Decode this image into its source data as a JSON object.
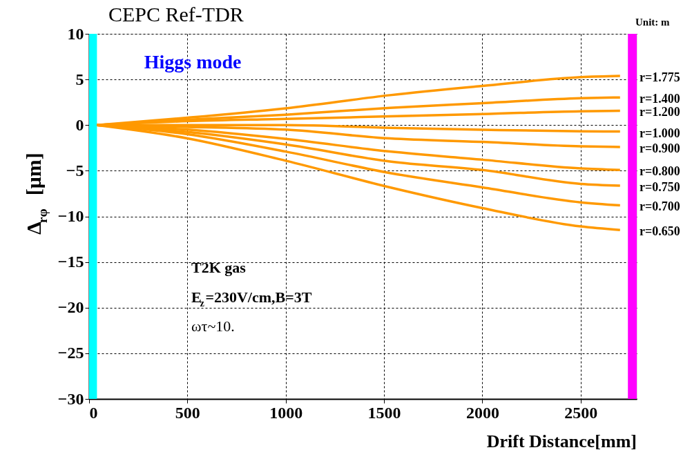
{
  "chart_data": {
    "type": "line",
    "title": "CEPC  Ref-TDR",
    "xlabel": "Drift Distance[mm]",
    "ylabel": "Δ$_{rφ}$  [μm]",
    "xlim": [
      0,
      2785
    ],
    "ylim": [
      -30,
      10
    ],
    "xticks": [
      0,
      500,
      1000,
      1500,
      2000,
      2500
    ],
    "yticks": [
      -30,
      -25,
      -20,
      -15,
      -10,
      -5,
      0,
      5,
      10
    ],
    "grid": true,
    "legend": false,
    "marker": "none",
    "line_style": "solid",
    "x": [
      40,
      500,
      1000,
      1530,
      2000,
      2500,
      2700
    ],
    "series": [
      {
        "name": "r=1.775",
        "color": "#ff9900",
        "values": [
          0,
          0.81,
          1.84,
          3.28,
          4.29,
          5.25,
          5.38
        ]
      },
      {
        "name": "r=1.400",
        "color": "#ff9900",
        "values": [
          0,
          0.58,
          1.14,
          1.89,
          2.4,
          2.95,
          3.03
        ]
      },
      {
        "name": "r=1.200",
        "color": "#ff9900",
        "values": [
          0,
          0.43,
          0.68,
          0.96,
          1.21,
          1.52,
          1.57
        ]
      },
      {
        "name": "r=1.000",
        "color": "#ff9900",
        "values": [
          0,
          0,
          0,
          -0.3,
          -0.51,
          -0.68,
          -0.7
        ]
      },
      {
        "name": "r=0.900",
        "color": "#ff9900",
        "values": [
          0,
          -0.2,
          -0.5,
          -1.46,
          -1.84,
          -2.32,
          -2.4
        ]
      },
      {
        "name": "r=0.800",
        "color": "#ff9900",
        "values": [
          0,
          -0.5,
          -1.52,
          -2.9,
          -3.79,
          -4.75,
          -4.92
        ]
      },
      {
        "name": "r=0.750",
        "color": "#ff9900",
        "values": [
          0,
          -0.76,
          -2.12,
          -3.99,
          -4.92,
          -6.44,
          -6.64
        ]
      },
      {
        "name": "r=0.700",
        "color": "#ff9900",
        "values": [
          0,
          -1.0,
          -2.9,
          -5.25,
          -6.82,
          -8.46,
          -8.79
        ]
      },
      {
        "name": "r=0.650",
        "color": "#ff9900",
        "values": [
          0,
          -1.45,
          -3.9,
          -6.82,
          -9.09,
          -11.1,
          -11.49
        ]
      }
    ],
    "bands": [
      {
        "axis": "x",
        "from": 0,
        "to": 40,
        "color": "#00ffff"
      },
      {
        "axis": "x",
        "from": 2740,
        "to": 2785,
        "color": "#ff00ff"
      }
    ],
    "annotations": [
      "Higgs mode",
      "T2K gas",
      "E$_{z}$=230V/cm,B=3T",
      "ωτ~10.",
      "Unit: m"
    ]
  }
}
